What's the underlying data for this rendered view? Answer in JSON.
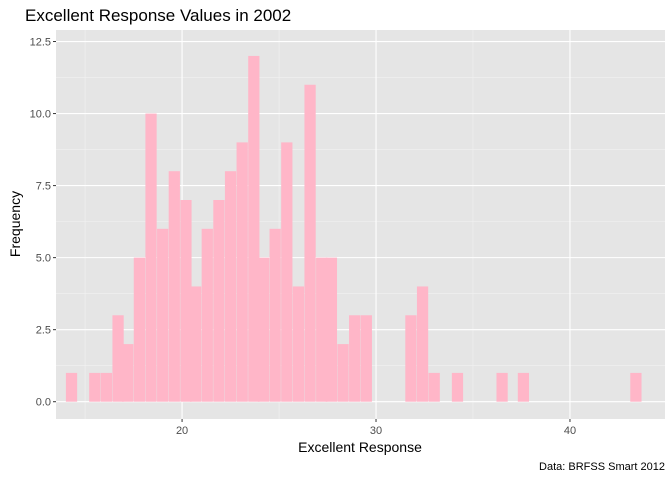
{
  "chart_data": {
    "type": "bar",
    "title": "Excellent Response Values in 2002",
    "xlabel": "Excellent Response",
    "ylabel": "Frequency",
    "caption": "Data: BRFSS Smart 2012",
    "x_ticks": [
      20,
      30,
      40
    ],
    "y_ticks": [
      "0.0",
      "2.5",
      "5.0",
      "7.5",
      "10.0",
      "12.5"
    ],
    "xlim": [
      13.5,
      44.9
    ],
    "ylim": [
      -0.6,
      12.9
    ],
    "grid": true,
    "bin_width": 0.58,
    "bar_color": "#ffb6c8",
    "panel_color": "#e5e5e5",
    "bins": [
      {
        "x": 14.3,
        "count": 1
      },
      {
        "x": 15.5,
        "count": 1
      },
      {
        "x": 16.1,
        "count": 1
      },
      {
        "x": 16.7,
        "count": 3
      },
      {
        "x": 17.2,
        "count": 2
      },
      {
        "x": 17.8,
        "count": 5
      },
      {
        "x": 18.4,
        "count": 10
      },
      {
        "x": 19.0,
        "count": 6
      },
      {
        "x": 19.6,
        "count": 8
      },
      {
        "x": 20.2,
        "count": 7
      },
      {
        "x": 20.7,
        "count": 4
      },
      {
        "x": 21.3,
        "count": 6
      },
      {
        "x": 21.9,
        "count": 7
      },
      {
        "x": 22.5,
        "count": 8
      },
      {
        "x": 23.1,
        "count": 9
      },
      {
        "x": 23.7,
        "count": 12
      },
      {
        "x": 24.2,
        "count": 5
      },
      {
        "x": 24.8,
        "count": 6
      },
      {
        "x": 25.4,
        "count": 9
      },
      {
        "x": 26.0,
        "count": 4
      },
      {
        "x": 26.6,
        "count": 11
      },
      {
        "x": 27.2,
        "count": 5
      },
      {
        "x": 27.7,
        "count": 5
      },
      {
        "x": 28.3,
        "count": 2
      },
      {
        "x": 28.9,
        "count": 3
      },
      {
        "x": 29.5,
        "count": 3
      },
      {
        "x": 31.8,
        "count": 3
      },
      {
        "x": 32.4,
        "count": 4
      },
      {
        "x": 33.0,
        "count": 1
      },
      {
        "x": 34.2,
        "count": 1
      },
      {
        "x": 36.5,
        "count": 1
      },
      {
        "x": 37.6,
        "count": 1
      },
      {
        "x": 43.4,
        "count": 1
      }
    ]
  }
}
